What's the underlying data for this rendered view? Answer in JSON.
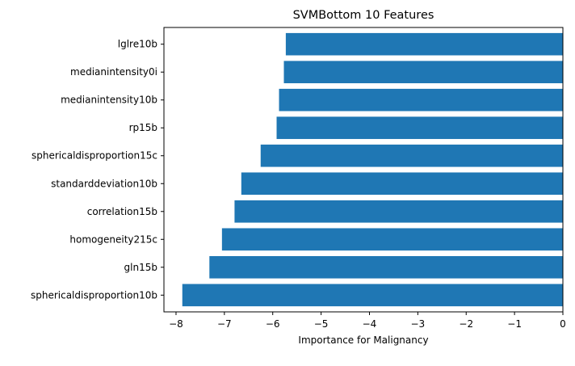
{
  "chart_data": {
    "type": "bar",
    "orientation": "horizontal",
    "title": "SVMBottom 10 Features",
    "xlabel": "Importance for Malignancy",
    "ylabel": "",
    "xlim": [
      -8.25,
      0
    ],
    "xticks": [
      -8,
      -7,
      -6,
      -5,
      -4,
      -3,
      -2,
      -1,
      0
    ],
    "xtick_labels": [
      "−8",
      "−7",
      "−6",
      "−5",
      "−4",
      "−3",
      "−2",
      "−1",
      "0"
    ],
    "grid": false,
    "bar_color": "#1f77b4",
    "categories": [
      "lglre10b",
      "medianintensity0i",
      "medianintensity10b",
      "rp15b",
      "sphericaldisproportion15c",
      "standarddeviation10b",
      "correlation15b",
      "homogeneity215c",
      "gln15b",
      "sphericaldisproportion10b"
    ],
    "values": [
      -5.73,
      -5.77,
      -5.87,
      -5.92,
      -6.25,
      -6.65,
      -6.79,
      -7.05,
      -7.31,
      -7.87
    ]
  }
}
